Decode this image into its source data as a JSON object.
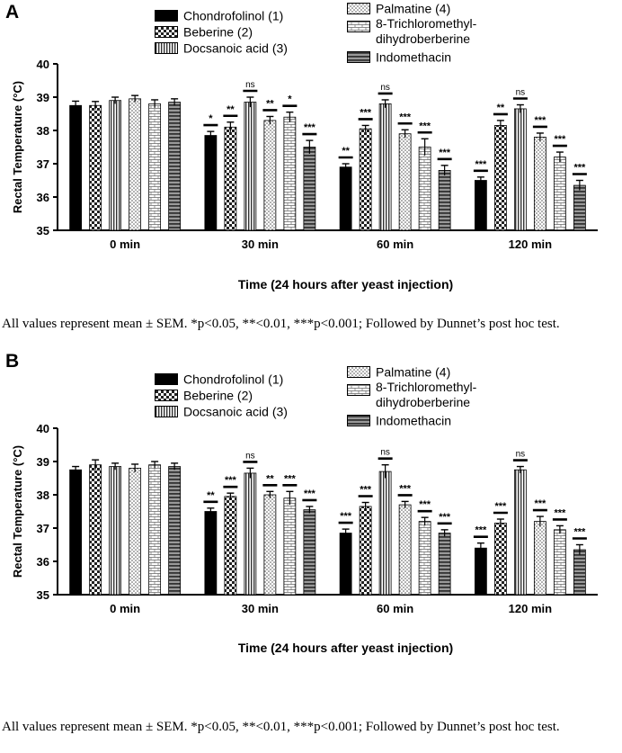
{
  "chart_data": [
    {
      "type": "bar",
      "panel_label": "A",
      "categories": [
        "0 min",
        "30 min",
        "60 min",
        "120 min"
      ],
      "series": [
        {
          "name": "Chondrofolinol (1)",
          "pattern": "solid",
          "values": [
            38.75,
            37.85,
            36.9,
            36.5
          ],
          "errors": [
            0.13,
            0.12,
            0.1,
            0.1
          ],
          "significance": [
            "",
            "*",
            "**",
            "***"
          ]
        },
        {
          "name": "Beberine (2)",
          "pattern": "checker",
          "values": [
            38.75,
            38.1,
            38.05,
            38.15
          ],
          "errors": [
            0.12,
            0.15,
            0.1,
            0.15
          ],
          "significance": [
            "",
            "**",
            "***",
            "**"
          ]
        },
        {
          "name": "Docsanoic acid (3)",
          "pattern": "vlines",
          "values": [
            38.9,
            38.85,
            38.8,
            38.65
          ],
          "errors": [
            0.1,
            0.15,
            0.12,
            0.12
          ],
          "significance": [
            "",
            "ns",
            "ns",
            "ns"
          ]
        },
        {
          "name": "Palmatine (4)",
          "pattern": "dots",
          "values": [
            38.95,
            38.3,
            37.9,
            37.8
          ],
          "errors": [
            0.1,
            0.12,
            0.12,
            0.12
          ],
          "significance": [
            "",
            "**",
            "***",
            "***"
          ]
        },
        {
          "name": "8-Trichloromethyl-\ndihydroberberine",
          "pattern": "brick",
          "values": [
            38.8,
            38.4,
            37.5,
            37.2
          ],
          "errors": [
            0.12,
            0.15,
            0.25,
            0.15
          ],
          "significance": [
            "",
            "*",
            "***",
            "***"
          ]
        },
        {
          "name": "Indomethacin",
          "pattern": "hlines",
          "values": [
            38.85,
            37.5,
            36.8,
            36.35
          ],
          "errors": [
            0.1,
            0.2,
            0.15,
            0.15
          ],
          "significance": [
            "",
            "***",
            "***",
            "***"
          ]
        }
      ],
      "ylabel": "Rectal Temperature (°C)",
      "xlabel": "Time (24 hours after yeast injection)",
      "ylim": [
        35,
        40
      ],
      "yticks": [
        "35",
        "36",
        "37",
        "38",
        "39",
        "40"
      ],
      "note": "All values represent mean ± SEM. *p<0.05, **<0.01, ***p<0.001; Followed by Dunnet’s post hoc test."
    },
    {
      "type": "bar",
      "panel_label": "B",
      "categories": [
        "0 min",
        "30 min",
        "60 min",
        "120 min"
      ],
      "series": [
        {
          "name": "Chondrofolinol (1)",
          "pattern": "solid",
          "values": [
            38.75,
            37.5,
            36.85,
            36.4
          ],
          "errors": [
            0.1,
            0.1,
            0.12,
            0.15
          ],
          "significance": [
            "",
            "**",
            "***",
            "***"
          ]
        },
        {
          "name": "Beberine (2)",
          "pattern": "checker",
          "values": [
            38.9,
            37.95,
            37.65,
            37.15
          ],
          "errors": [
            0.15,
            0.1,
            0.12,
            0.12
          ],
          "significance": [
            "",
            "***",
            "***",
            "***"
          ]
        },
        {
          "name": "Docsanoic acid (3)",
          "pattern": "vlines",
          "values": [
            38.85,
            38.65,
            38.7,
            38.75
          ],
          "errors": [
            0.1,
            0.15,
            0.2,
            0.1
          ],
          "significance": [
            "",
            "ns",
            "ns",
            "ns"
          ]
        },
        {
          "name": "Palmatine (4)",
          "pattern": "dots",
          "values": [
            38.8,
            38.0,
            37.7,
            37.2
          ],
          "errors": [
            0.12,
            0.1,
            0.1,
            0.15
          ],
          "significance": [
            "",
            "**",
            "***",
            "***"
          ]
        },
        {
          "name": "8-Trichloromethyl-\ndihydroberberine",
          "pattern": "brick",
          "values": [
            38.9,
            37.9,
            37.2,
            36.95
          ],
          "errors": [
            0.1,
            0.2,
            0.12,
            0.12
          ],
          "significance": [
            "",
            "***",
            "***",
            "***"
          ]
        },
        {
          "name": "Indomethacin",
          "pattern": "hlines",
          "values": [
            38.85,
            37.55,
            36.85,
            36.35
          ],
          "errors": [
            0.1,
            0.1,
            0.1,
            0.15
          ],
          "significance": [
            "",
            "***",
            "***",
            "***"
          ]
        }
      ],
      "ylabel": "Rectal Temperature (°C)",
      "xlabel": "Time (24 hours after yeast injection)",
      "ylim": [
        35,
        40
      ],
      "yticks": [
        "35",
        "36",
        "37",
        "38",
        "39",
        "40"
      ],
      "note": "All values represent mean ± SEM. *p<0.05, **<0.01, ***p<0.001; Followed by Dunnet’s post hoc test."
    }
  ]
}
